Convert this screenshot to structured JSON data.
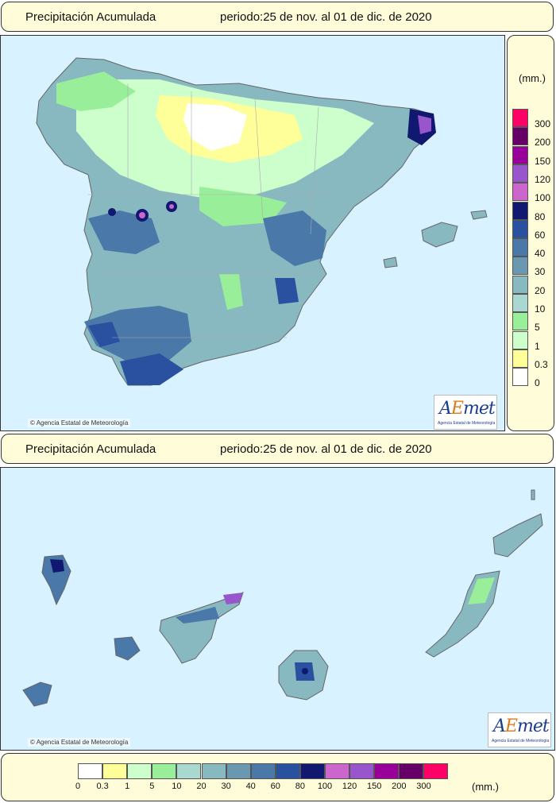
{
  "header_top": {
    "title": "Precipitación Acumulada",
    "period": "periodo:25 de nov. al 01 de dic. de 2020"
  },
  "header_bottom": {
    "title": "Precipitación Acumulada",
    "period": "periodo:25 de nov. al 01 de dic. de 2020"
  },
  "copyright": "Agencia Estatal de Meteorología",
  "logo": {
    "text_a": "A",
    "text_b": "E",
    "text_c": "met",
    "subtitle": "Agencia Estatal de Meteorología"
  },
  "legend": {
    "unit": "(mm.)",
    "classes": [
      {
        "label": "0",
        "color": "#ffffff"
      },
      {
        "label": "0.3",
        "color": "#ffff99"
      },
      {
        "label": "1",
        "color": "#ccffcc"
      },
      {
        "label": "5",
        "color": "#99ee99"
      },
      {
        "label": "10",
        "color": "#a8d8d0"
      },
      {
        "label": "20",
        "color": "#88b8c0"
      },
      {
        "label": "30",
        "color": "#6a98b0"
      },
      {
        "label": "40",
        "color": "#4a78a8"
      },
      {
        "label": "60",
        "color": "#2a50a0"
      },
      {
        "label": "80",
        "color": "#101870"
      },
      {
        "label": "100",
        "color": "#cc66cc"
      },
      {
        "label": "120",
        "color": "#9955cc"
      },
      {
        "label": "150",
        "color": "#990099"
      },
      {
        "label": "200",
        "color": "#660066"
      },
      {
        "label": "300",
        "color": "#ff0066"
      }
    ]
  }
}
